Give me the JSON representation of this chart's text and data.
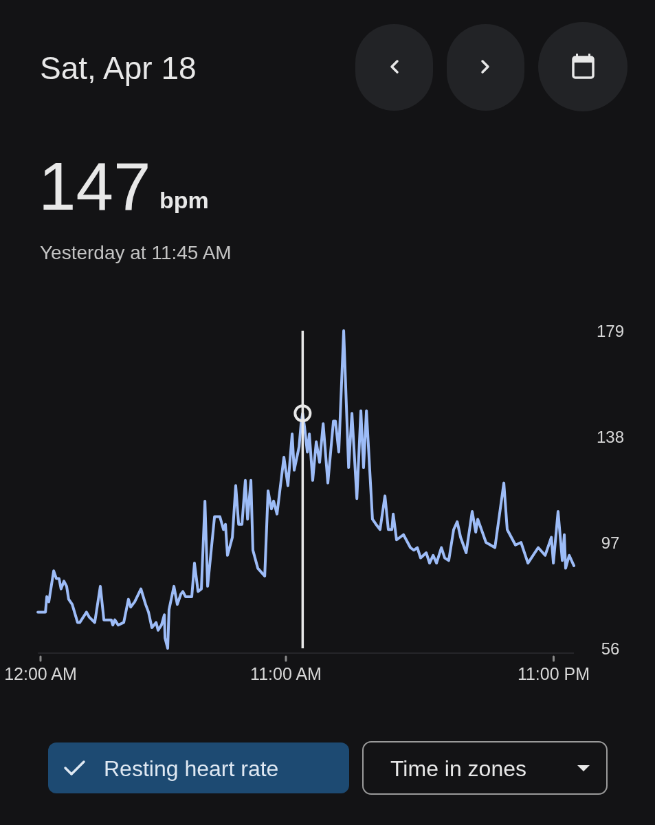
{
  "chart_data": {
    "type": "line",
    "title": "Sat, Apr 18",
    "annotations": [
      "147",
      "bpm",
      "Yesterday at 11:45 AM",
      "Resting heart rate",
      "Time in zones"
    ],
    "xlim": [
      -0.12,
      23.91
    ],
    "xticks": [
      {
        "value": 0,
        "label": "12:00 AM"
      },
      {
        "value": 11,
        "label": "11:00 AM"
      },
      {
        "value": 23,
        "label": "11:00 PM"
      }
    ],
    "ylim": [
      56,
      179
    ],
    "yticks": [
      56,
      97,
      138,
      179
    ],
    "grid": false,
    "marker": "none",
    "line_style": "solid",
    "ref_lines": [
      {
        "axis": "x",
        "value": 11.75,
        "color": "#e8e8e8"
      }
    ],
    "series": [
      {
        "color": "#9dbcf7",
        "x": [
          -0.12,
          0.22,
          0.28,
          0.37,
          0.59,
          0.71,
          0.83,
          0.92,
          1.05,
          1.17,
          1.26,
          1.42,
          1.66,
          1.76,
          2.06,
          2.19,
          2.43,
          2.68,
          2.84,
          3.17,
          3.24,
          3.33,
          3.48,
          3.73,
          3.94,
          4.04,
          4.22,
          4.5,
          4.71,
          4.84,
          4.99,
          5.18,
          5.27,
          5.42,
          5.55,
          5.58,
          5.7,
          5.76,
          5.98,
          6.13,
          6.29,
          6.38,
          6.5,
          6.63,
          6.78,
          6.9,
          7.06,
          7.21,
          7.37,
          7.49,
          7.8,
          8.04,
          8.2,
          8.29,
          8.38,
          8.6,
          8.75,
          8.88,
          9.03,
          9.18,
          9.28,
          9.43,
          9.52,
          9.74,
          10.05,
          10.2,
          10.35,
          10.45,
          10.6,
          10.91,
          11.09,
          11.28,
          11.37,
          11.59,
          11.68,
          11.75,
          11.83,
          11.96,
          12.05,
          12.2,
          12.36,
          12.51,
          12.67,
          12.88,
          13.13,
          13.22,
          13.37,
          13.59,
          13.81,
          13.96,
          14.18,
          14.36,
          14.48,
          14.61,
          14.88,
          15.04,
          15.22,
          15.44,
          15.59,
          15.75,
          15.81,
          15.96,
          16.27,
          16.58,
          16.73,
          16.89,
          17.04,
          17.29,
          17.44,
          17.6,
          17.75,
          17.97,
          18.12,
          18.3,
          18.52,
          18.68,
          18.83,
          19.08,
          19.35,
          19.51,
          19.6,
          19.97,
          20.37,
          20.77,
          20.92,
          21.29,
          21.54,
          21.85,
          22.31,
          22.62,
          22.9,
          22.99,
          23.2,
          23.39,
          23.48,
          23.54,
          23.7,
          23.91
        ],
        "values": [
          70,
          70,
          76,
          74,
          86,
          83,
          83,
          79,
          82,
          80,
          75,
          73,
          66,
          66,
          70,
          68,
          66,
          80,
          67,
          67,
          65,
          67,
          65,
          66,
          75,
          72,
          74,
          79,
          73,
          70,
          64,
          66,
          63,
          65,
          69,
          60,
          56,
          71,
          80,
          73,
          77,
          78,
          76,
          76,
          76,
          89,
          78,
          79,
          113,
          80,
          107,
          107,
          102,
          104,
          92,
          99,
          119,
          104,
          104,
          121,
          106,
          121,
          94,
          87,
          84,
          117,
          110,
          113,
          108,
          130,
          119,
          139,
          125,
          134,
          143,
          147,
          142,
          132,
          139,
          121,
          136,
          128,
          143,
          120,
          144,
          144,
          132,
          179,
          126,
          147,
          114,
          148,
          126,
          148,
          106,
          104,
          102,
          115,
          102,
          102,
          108,
          98,
          100,
          95,
          94,
          95,
          91,
          93,
          89,
          92,
          89,
          95,
          91,
          90,
          102,
          105,
          99,
          93,
          109,
          101,
          106,
          97,
          95,
          120,
          102,
          96,
          97,
          89,
          95,
          92,
          99,
          89,
          109,
          90,
          100,
          87,
          92,
          88
        ]
      }
    ]
  }
}
